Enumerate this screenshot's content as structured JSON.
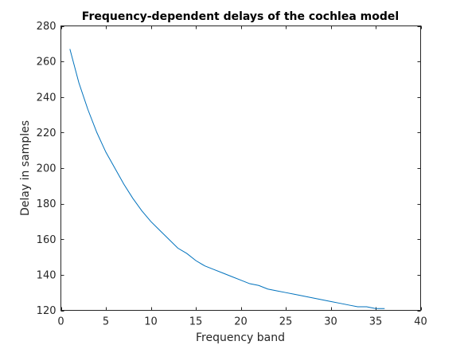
{
  "chart_data": {
    "type": "line",
    "title": "Frequency-dependent delays of the cochlea model",
    "xlabel": "Frequency band",
    "ylabel": "Delay in samples",
    "xlim": [
      0,
      40
    ],
    "ylim": [
      120,
      280
    ],
    "xticks": [
      0,
      5,
      10,
      15,
      20,
      25,
      30,
      35,
      40
    ],
    "yticks": [
      120,
      140,
      160,
      180,
      200,
      220,
      240,
      260,
      280
    ],
    "xtick_labels": [
      "0",
      "5",
      "10",
      "15",
      "20",
      "25",
      "30",
      "35",
      "40"
    ],
    "ytick_labels": [
      "120",
      "140",
      "160",
      "180",
      "200",
      "220",
      "240",
      "260",
      "280"
    ],
    "grid": false,
    "line_color": "#0072BD",
    "axis_color": "#262626",
    "series": [
      {
        "x": [
          1,
          2,
          3,
          4,
          5,
          6,
          7,
          8,
          9,
          10,
          11,
          12,
          13,
          14,
          15,
          16,
          17,
          18,
          19,
          20,
          21,
          22,
          23,
          24,
          25,
          26,
          27,
          28,
          29,
          30,
          31,
          32,
          33,
          34,
          35,
          36
        ],
        "values": [
          267,
          248,
          233,
          220,
          209,
          200,
          191,
          183,
          176,
          170,
          165,
          160,
          155,
          152,
          148,
          145,
          143,
          141,
          139,
          137,
          135,
          134,
          132,
          131,
          130,
          129,
          128,
          127,
          126,
          125,
          124,
          123,
          122,
          122,
          121,
          121
        ]
      }
    ]
  }
}
